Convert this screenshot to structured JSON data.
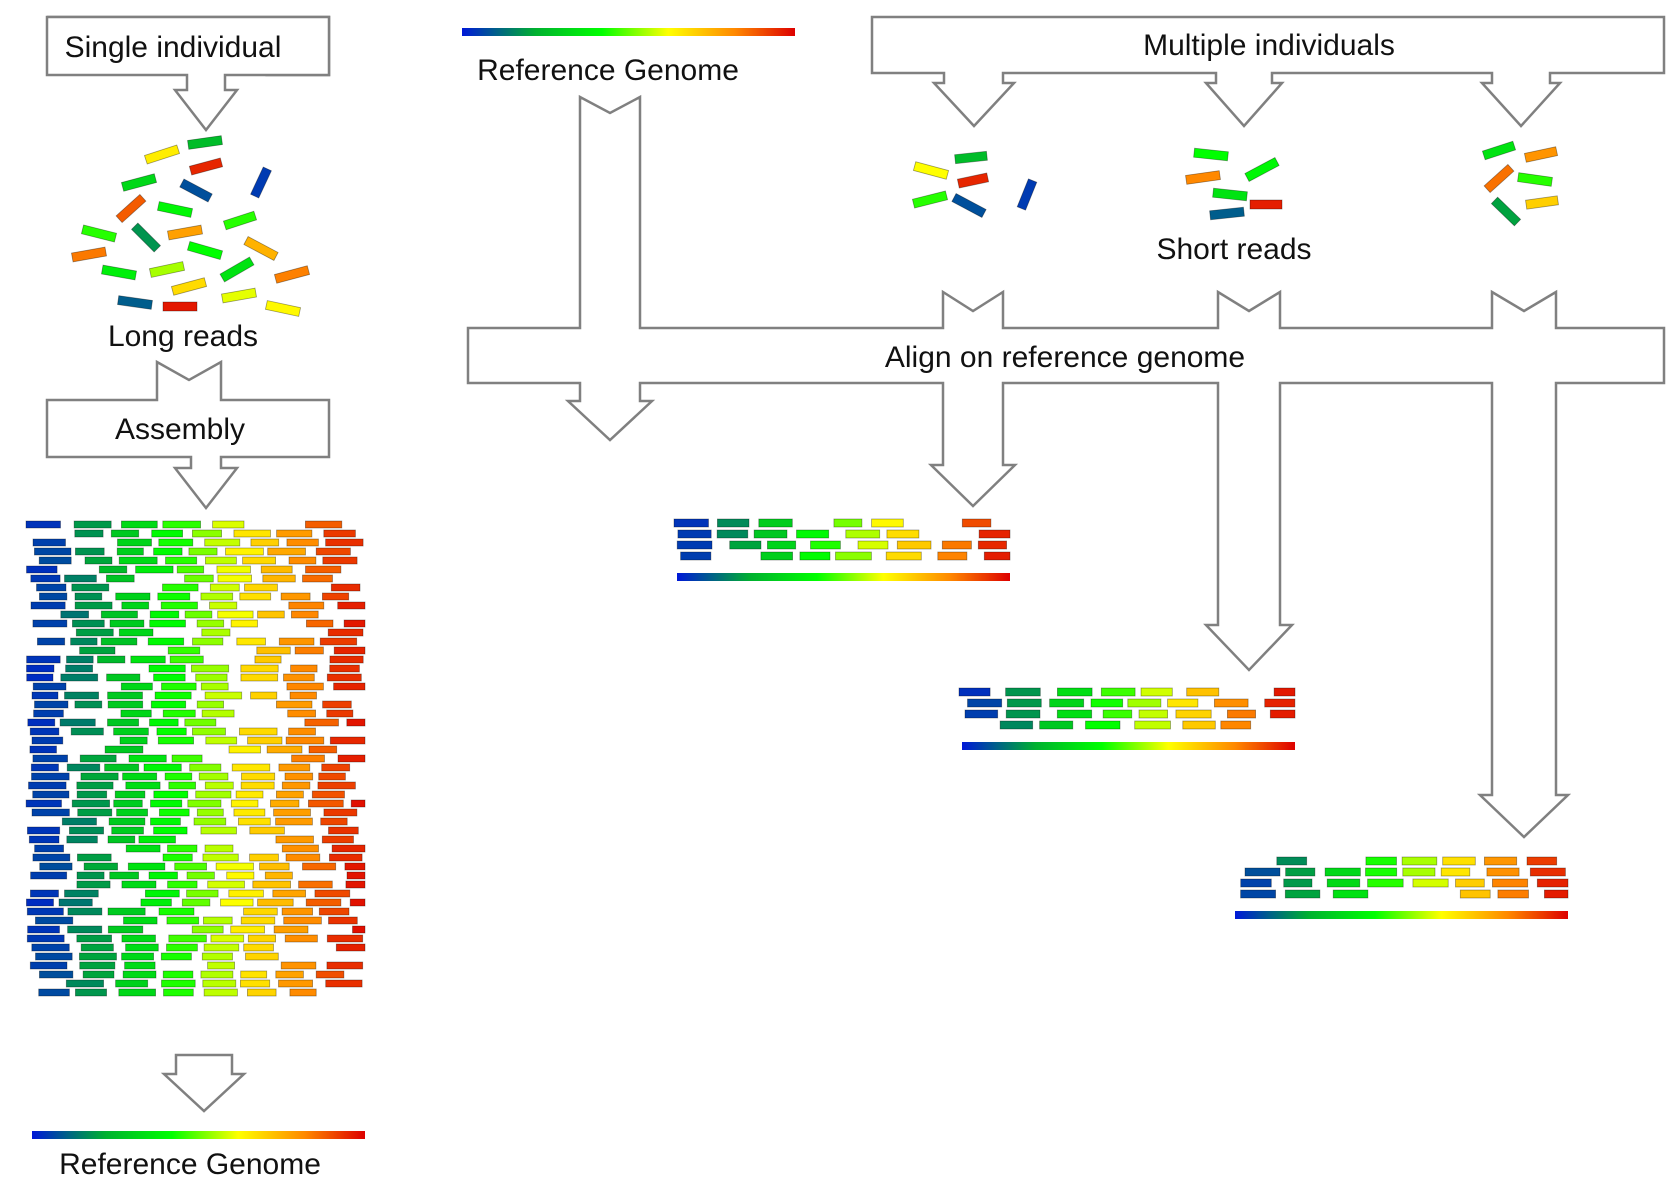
{
  "labels": {
    "single_individual": "Single individual",
    "long_reads": "Long reads",
    "assembly": "Assembly",
    "reference_genome_bottom": "Reference Genome",
    "reference_genome_top": "Reference Genome",
    "multiple_individuals": "Multiple individuals",
    "short_reads": "Short reads",
    "align_on_reference": "Align on reference genome"
  },
  "colors": {
    "gradient": [
      "#0018d8",
      "#00b030",
      "#00ff00",
      "#ffff00",
      "#ff8800",
      "#dd0000"
    ],
    "arrow_stroke": "#808080"
  }
}
